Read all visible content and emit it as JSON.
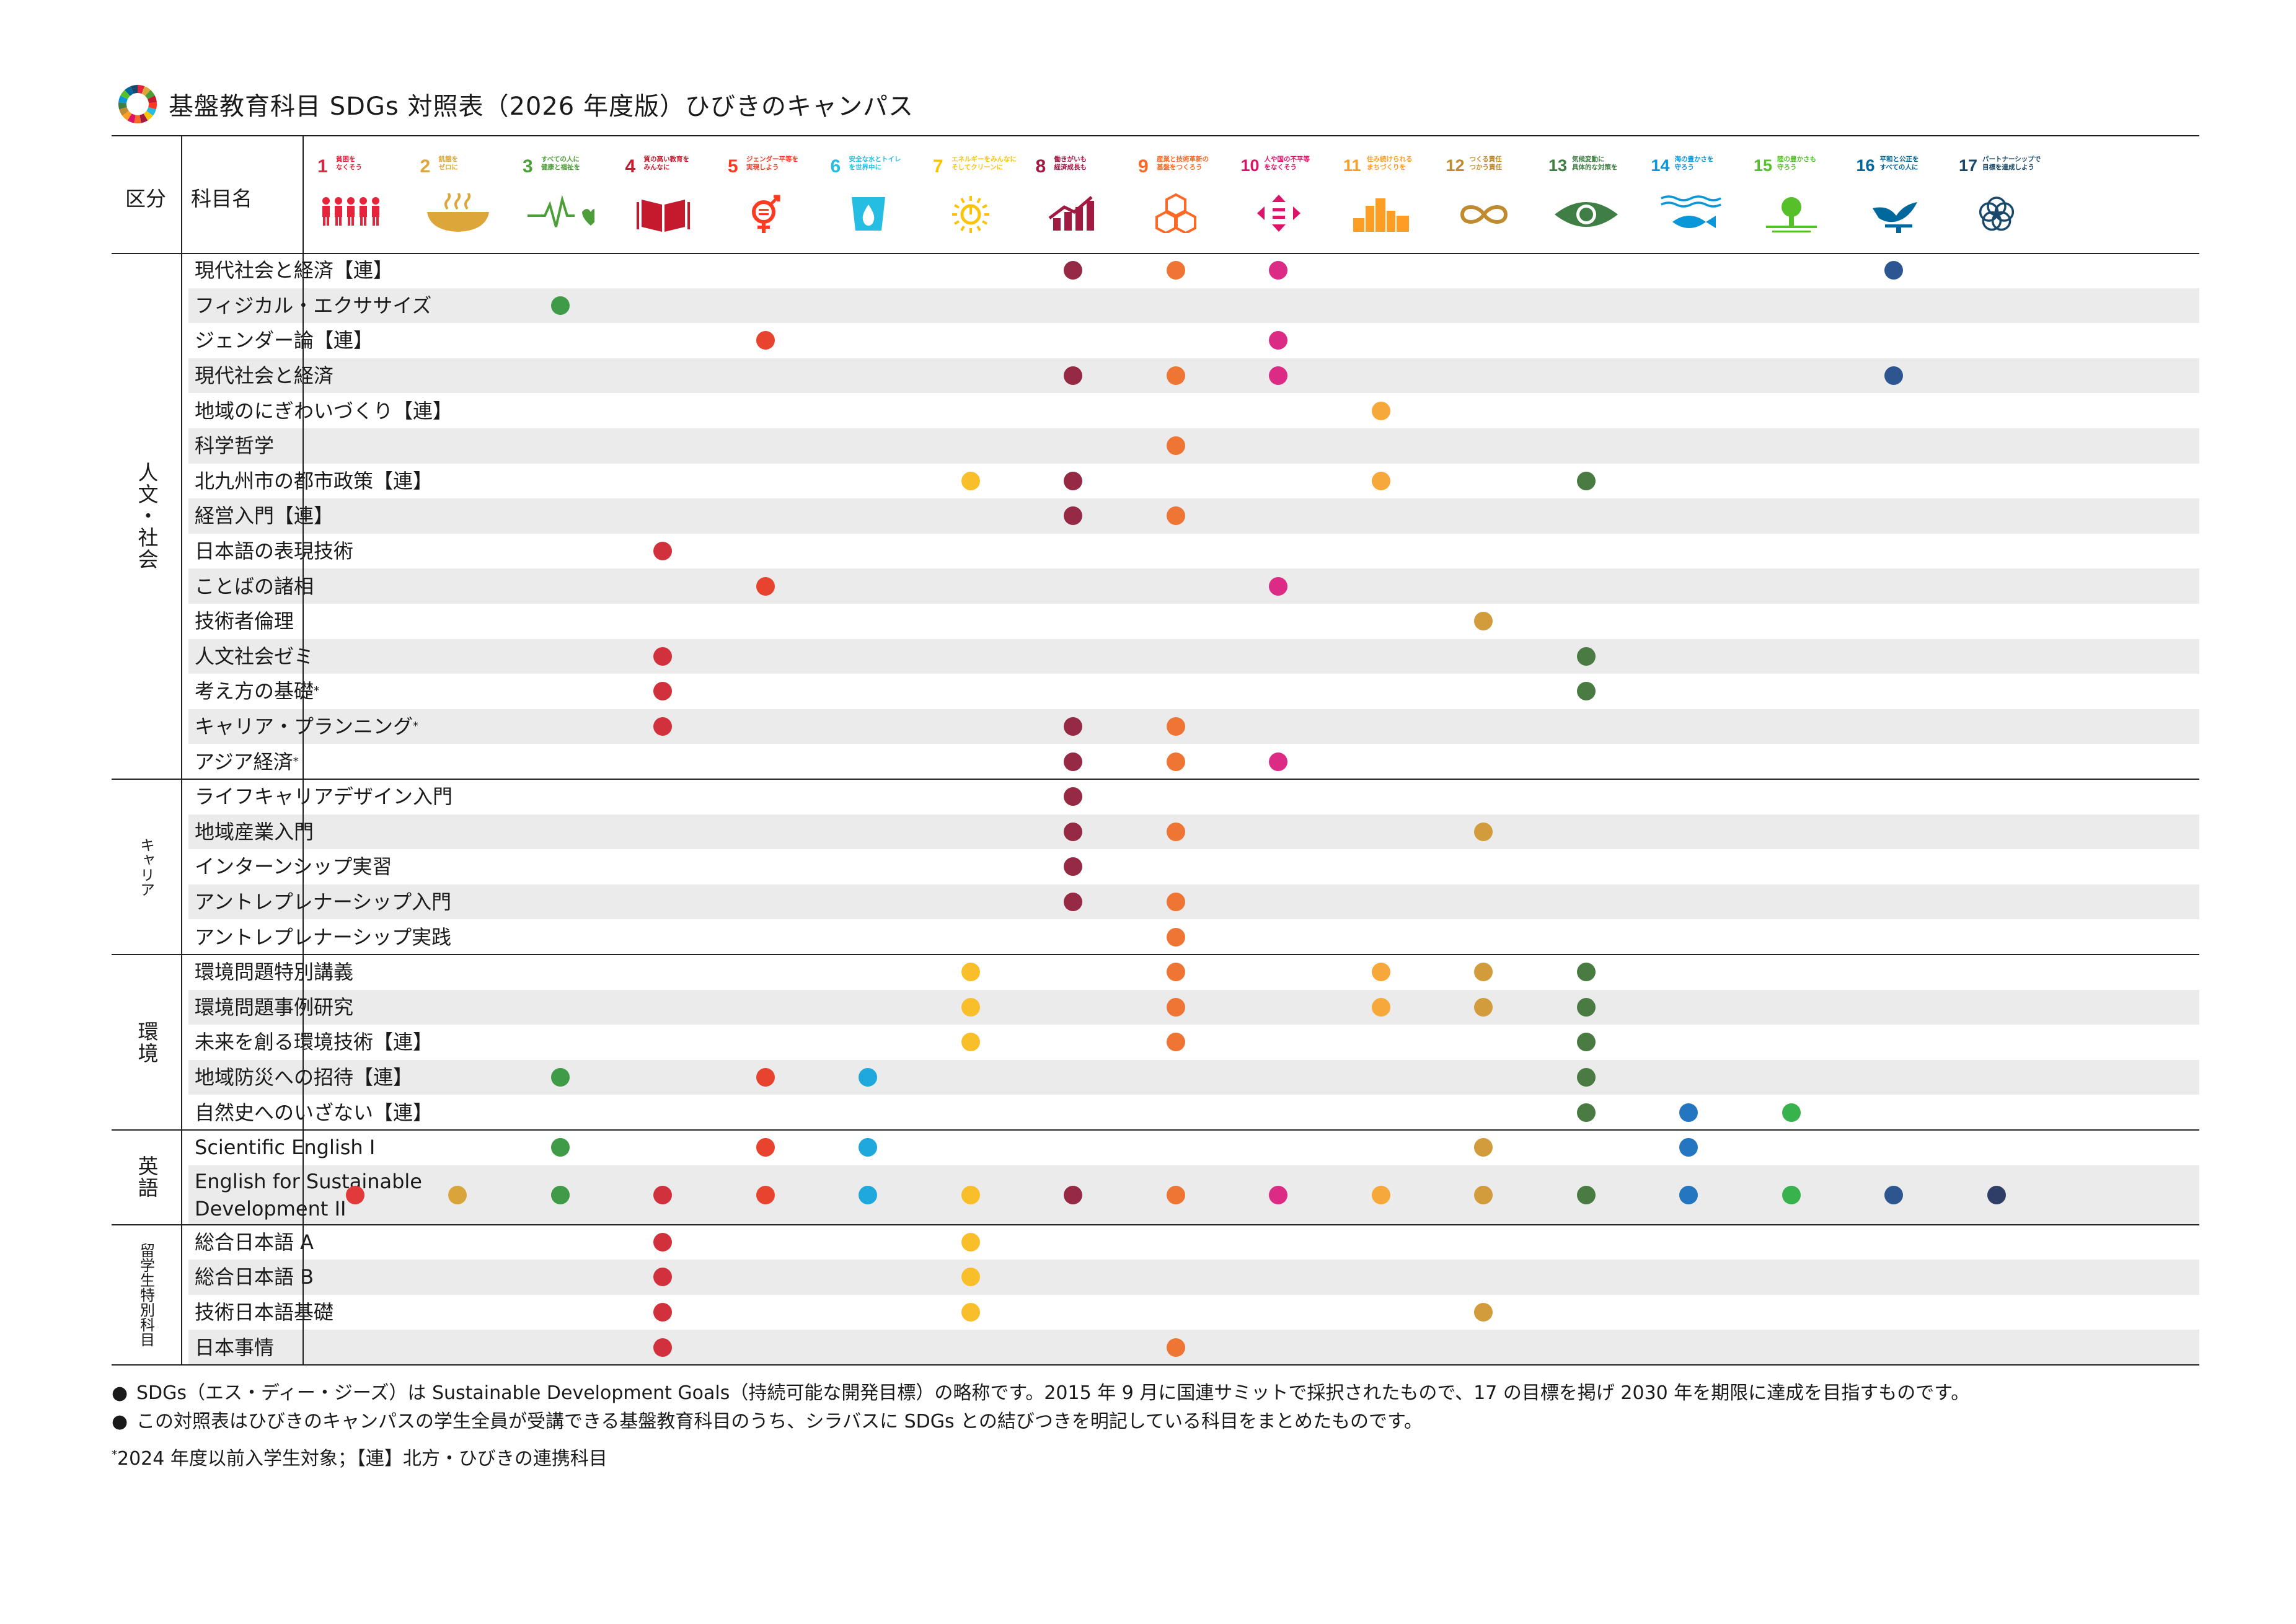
{
  "title": "基盤教育科目 SDGs 対照表（2026 年度版）ひびきのキャンパス",
  "header": {
    "division_label": "区分",
    "subject_label": "科目名"
  },
  "goals": [
    {
      "num": "1",
      "label": "貧困を\nなくそう",
      "color": "#E5243B",
      "icon": "people-icon"
    },
    {
      "num": "2",
      "label": "飢餓を\nゼロに",
      "color": "#DDA63A",
      "icon": "bowl-icon"
    },
    {
      "num": "3",
      "label": "すべての人に\n健康と福祉を",
      "color": "#4C9F38",
      "icon": "heartbeat-icon"
    },
    {
      "num": "4",
      "label": "質の高い教育を\nみんなに",
      "color": "#C5192D",
      "icon": "book-icon"
    },
    {
      "num": "5",
      "label": "ジェンダー平等を\n実現しよう",
      "color": "#FF3A21",
      "icon": "gender-icon"
    },
    {
      "num": "6",
      "label": "安全な水とトイレ\nを世界中に",
      "color": "#26BDE2",
      "icon": "water-icon"
    },
    {
      "num": "7",
      "label": "エネルギーをみんなに\nそしてクリーンに",
      "color": "#FCC30B",
      "icon": "sun-power-icon"
    },
    {
      "num": "8",
      "label": "働きがいも\n経済成長も",
      "color": "#A21942",
      "icon": "growth-chart-icon"
    },
    {
      "num": "9",
      "label": "産業と技術革新の\n基盤をつくろう",
      "color": "#FD6925",
      "icon": "cubes-icon"
    },
    {
      "num": "10",
      "label": "人や国の不平等\nをなくそう",
      "color": "#DD1367",
      "icon": "equality-icon"
    },
    {
      "num": "11",
      "label": "住み続けられる\nまちづくりを",
      "color": "#FD9D24",
      "icon": "city-icon"
    },
    {
      "num": "12",
      "label": "つくる責任\nつかう責任",
      "color": "#BF8B2E",
      "icon": "infinity-icon"
    },
    {
      "num": "13",
      "label": "気候変動に\n具体的な対策を",
      "color": "#3F7E44",
      "icon": "eye-globe-icon"
    },
    {
      "num": "14",
      "label": "海の豊かさを\n守ろう",
      "color": "#0A97D9",
      "icon": "fish-icon"
    },
    {
      "num": "15",
      "label": "陸の豊かさも\n守ろう",
      "color": "#56C02B",
      "icon": "tree-icon"
    },
    {
      "num": "16",
      "label": "平和と公正を\nすべての人に",
      "color": "#00689D",
      "icon": "dove-icon"
    },
    {
      "num": "17",
      "label": "パートナーシップで\n目標を達成しよう",
      "color": "#19486A",
      "icon": "flower-rings-icon"
    }
  ],
  "dot_colors": [
    "#E23A3B",
    "#D9A53A",
    "#3F9B47",
    "#D0313D",
    "#E8432F",
    "#1EA8DC",
    "#F9BF2B",
    "#962A45",
    "#EE7534",
    "#DC2B85",
    "#F6A93A",
    "#D29B3C",
    "#4A7B43",
    "#2476C0",
    "#37B24D",
    "#2D5690",
    "#2F3E66"
  ],
  "categories": [
    {
      "label": "人文・社会",
      "small": false,
      "rows": [
        {
          "name": "現代社会と経済【連】",
          "goals": [
            8,
            9,
            10,
            16
          ]
        },
        {
          "name": "フィジカル・エクササイズ",
          "goals": [
            3
          ]
        },
        {
          "name": "ジェンダー論【連】",
          "goals": [
            5,
            10
          ]
        },
        {
          "name": "現代社会と経済",
          "goals": [
            8,
            9,
            10,
            16
          ]
        },
        {
          "name": "地域のにぎわいづくり【連】",
          "goals": [
            11
          ]
        },
        {
          "name": "科学哲学",
          "goals": [
            9
          ]
        },
        {
          "name": "北九州市の都市政策【連】",
          "goals": [
            7,
            8,
            11,
            13
          ]
        },
        {
          "name": "経営入門【連】",
          "goals": [
            8,
            9
          ]
        },
        {
          "name": "日本語の表現技術",
          "goals": [
            4
          ]
        },
        {
          "name": "ことばの諸相",
          "goals": [
            5,
            10
          ]
        },
        {
          "name": "技術者倫理",
          "goals": [
            12
          ]
        },
        {
          "name": "人文社会ゼミ",
          "goals": [
            4,
            13
          ]
        },
        {
          "name": "考え方の基礎",
          "sup": "*",
          "goals": [
            4,
            13
          ]
        },
        {
          "name": "キャリア・プランニング",
          "sup": "*",
          "goals": [
            4,
            8,
            9
          ]
        },
        {
          "name": "アジア経済",
          "sup": "*",
          "goals": [
            8,
            9,
            10
          ]
        }
      ]
    },
    {
      "label": "キャリア",
      "small": true,
      "rows": [
        {
          "name": "ライフキャリアデザイン入門",
          "goals": [
            8
          ]
        },
        {
          "name": "地域産業入門",
          "goals": [
            8,
            9,
            12
          ]
        },
        {
          "name": "インターンシップ実習",
          "goals": [
            8
          ]
        },
        {
          "name": "アントレプレナーシップ入門",
          "goals": [
            8,
            9
          ]
        },
        {
          "name": "アントレプレナーシップ実践",
          "goals": [
            9
          ]
        }
      ]
    },
    {
      "label": "環境",
      "small": false,
      "rows": [
        {
          "name": "環境問題特別講義",
          "goals": [
            7,
            9,
            11,
            12,
            13
          ]
        },
        {
          "name": "環境問題事例研究",
          "goals": [
            7,
            9,
            11,
            12,
            13
          ]
        },
        {
          "name": "未来を創る環境技術【連】",
          "goals": [
            7,
            9,
            13
          ]
        },
        {
          "name": "地域防災への招待【連】",
          "goals": [
            3,
            5,
            6,
            13
          ]
        },
        {
          "name": "自然史へのいざない【連】",
          "goals": [
            13,
            14,
            15
          ]
        }
      ]
    },
    {
      "label": "英語",
      "small": false,
      "rows": [
        {
          "name": "Scientific English I",
          "goals": [
            3,
            5,
            6,
            12,
            14
          ]
        },
        {
          "name": "English for Sustainable\nDevelopment II",
          "tall": true,
          "goals": [
            1,
            2,
            3,
            4,
            5,
            6,
            7,
            8,
            9,
            10,
            11,
            12,
            13,
            14,
            15,
            16,
            17
          ]
        }
      ]
    },
    {
      "label": "留学生特別科目",
      "small": true,
      "rows": [
        {
          "name": "総合日本語 A",
          "goals": [
            4,
            7
          ]
        },
        {
          "name": "総合日本語 B",
          "goals": [
            4,
            7
          ]
        },
        {
          "name": "技術日本語基礎",
          "goals": [
            4,
            7,
            12
          ]
        },
        {
          "name": "日本事情",
          "goals": [
            4,
            9
          ]
        }
      ]
    }
  ],
  "notes": [
    "SDGs（エス・ディー・ジーズ）は Sustainable Development Goals（持続可能な開発目標）の略称です。2015 年 9 月に国連サミットで採択されたもので、17 の目標を掲げ 2030 年を期限に達成を目指すものです。",
    "この対照表はひびきのキャンパスの学生全員が受講できる基盤教育科目のうち、シラバスに SDGs との結びつきを明記している科目をまとめたものです。"
  ],
  "bullet": "●",
  "footnote_mark": "*",
  "footnote": "2024 年度以前入学生対象；【連】北方・ひびきの連携科目"
}
